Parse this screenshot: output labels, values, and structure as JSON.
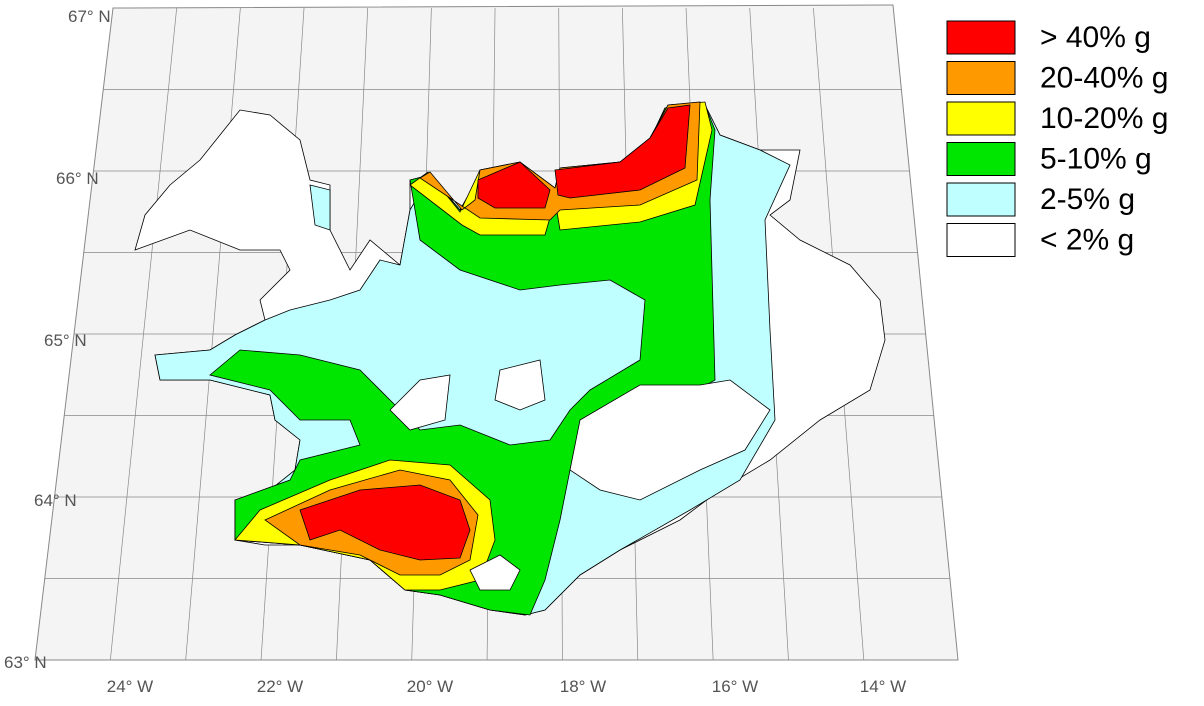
{
  "latitude_labels": [
    "67° N",
    "66° N",
    "65° N",
    "64° N",
    "63° N"
  ],
  "longitude_labels": [
    "24° W",
    "22° W",
    "20° W",
    "18° W",
    "16° W",
    "14° W"
  ],
  "legend": [
    {
      "label": "> 40% g",
      "color": "#ff0000"
    },
    {
      "label": "20-40% g",
      "color": "#ff9900"
    },
    {
      "label": "10-20% g",
      "color": "#ffff00"
    },
    {
      "label": "5-10% g",
      "color": "#00e600"
    },
    {
      "label": "2-5% g",
      "color": "#bfffff"
    },
    {
      "label": "< 2% g",
      "color": "#ffffff"
    }
  ]
}
